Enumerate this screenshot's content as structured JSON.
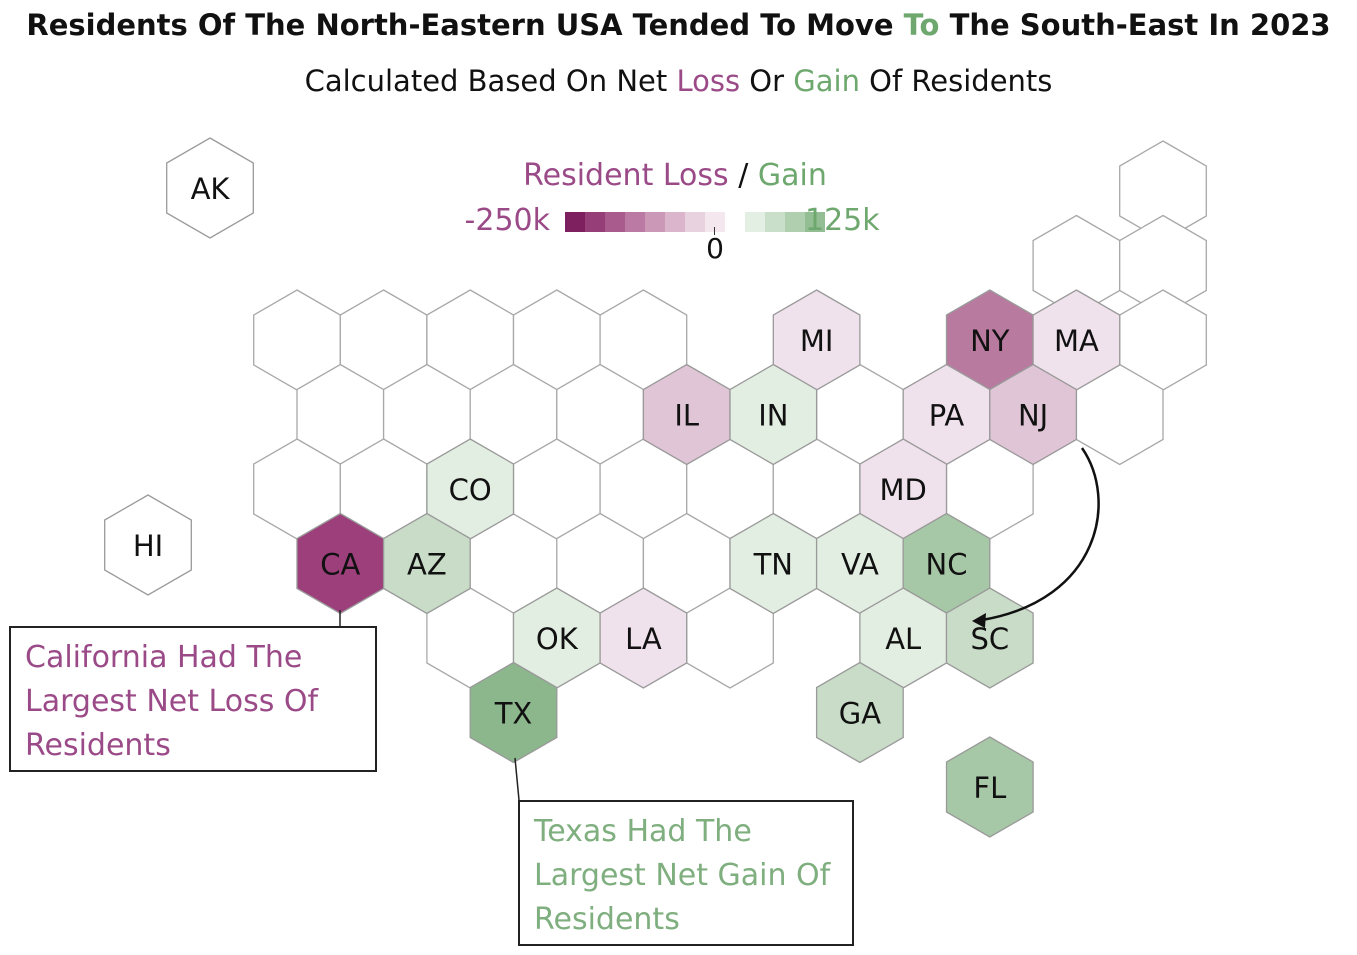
{
  "title": {
    "part1": "Residents Of The North-Eastern USA Tended To Move ",
    "highlight": "To",
    "part2": " The South-East In 2023"
  },
  "subtitle": {
    "part1": "Calculated Based On Net ",
    "loss_word": "Loss",
    "mid": " Or ",
    "gain_word": "Gain",
    "part2": " Of Residents"
  },
  "legend": {
    "title_loss": "Resident Loss",
    "separator": " / ",
    "title_gain": "Gain",
    "min_label": "-250k",
    "zero_label": "0",
    "max_label": "125k",
    "min_value": -250000,
    "max_value": 125000,
    "colors": [
      "#7e1f5f",
      "#953e78",
      "#a95b8e",
      "#bb7aa3",
      "#cb98b8",
      "#dbb5cc",
      "#e9d2df",
      "#f4e8ee",
      "#ffffff",
      "#e2efe2",
      "#c9dfc9",
      "#afcfaf",
      "#93bd93"
    ]
  },
  "colors": {
    "loss": "#9b4a88",
    "gain": "#6ea86e",
    "neutral_stroke": "#a8a8a8",
    "tile_border": "#9a9a9a"
  },
  "states": [
    {
      "abbr": "AK",
      "fill": "#ffffff"
    },
    {
      "abbr": "HI",
      "fill": "#ffffff"
    },
    {
      "abbr": "MI",
      "fill": "#f0e2ec"
    },
    {
      "abbr": "NY",
      "fill": "#b97a9f"
    },
    {
      "abbr": "MA",
      "fill": "#f0e2ec"
    },
    {
      "abbr": "IL",
      "fill": "#e0c5d6"
    },
    {
      "abbr": "IN",
      "fill": "#e3eee3"
    },
    {
      "abbr": "PA",
      "fill": "#f0e2ec"
    },
    {
      "abbr": "NJ",
      "fill": "#e0c5d6"
    },
    {
      "abbr": "CO",
      "fill": "#e3eee3"
    },
    {
      "abbr": "MD",
      "fill": "#f0e2ec"
    },
    {
      "abbr": "CA",
      "fill": "#9c3f7b"
    },
    {
      "abbr": "AZ",
      "fill": "#c8dcc8"
    },
    {
      "abbr": "TN",
      "fill": "#e3eee3"
    },
    {
      "abbr": "VA",
      "fill": "#e3eee3"
    },
    {
      "abbr": "NC",
      "fill": "#a7c8a7"
    },
    {
      "abbr": "OK",
      "fill": "#e3eee3"
    },
    {
      "abbr": "LA",
      "fill": "#f0e2ec"
    },
    {
      "abbr": "AL",
      "fill": "#e3eee3"
    },
    {
      "abbr": "SC",
      "fill": "#c8dcc8"
    },
    {
      "abbr": "TX",
      "fill": "#8cb68c"
    },
    {
      "abbr": "GA",
      "fill": "#c8dcc8"
    },
    {
      "abbr": "FL",
      "fill": "#a7c8a7"
    }
  ],
  "annotations": {
    "california": "California Had The Largest Net Loss Of Residents",
    "texas": "Texas Had The Largest Net Gain Of Residents"
  }
}
